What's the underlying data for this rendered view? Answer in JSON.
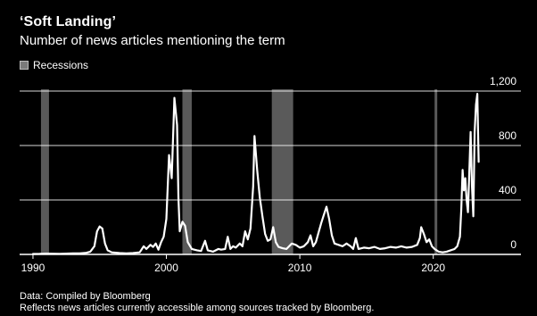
{
  "header": {
    "title": "‘Soft Landing’",
    "subtitle": "Number of news articles mentioning the term"
  },
  "legend": {
    "label": "Recessions",
    "swatch_color": "#6e6e6e"
  },
  "footer": {
    "source_line": "Data: Compiled by Bloomberg",
    "note_line": "Reflects news articles currently accessible among sources tracked by Bloomberg."
  },
  "colors": {
    "background": "#000000",
    "line": "#ffffff",
    "recession": "#5a5a5a",
    "grid": "#ffffff"
  },
  "chart_data": {
    "type": "line",
    "title": "‘Soft Landing’",
    "subtitle": "Number of news articles mentioning the term",
    "x_range": [
      1989.0,
      2024.7
    ],
    "ylim": [
      0,
      1200
    ],
    "y_ticks": [
      0,
      400,
      800,
      1200
    ],
    "y_tick_labels": [
      "0",
      "400",
      "800",
      "1,200"
    ],
    "x_ticks": [
      1990,
      2000,
      2010,
      2020
    ],
    "x_tick_labels": [
      "1990",
      "2000",
      "2010",
      "2020"
    ],
    "y_axis_side": "right",
    "grid": true,
    "legend_position": "top-left",
    "recessions": [
      [
        1990.6,
        1991.2
      ],
      [
        2001.2,
        2001.9
      ],
      [
        2007.9,
        2009.5
      ],
      [
        2020.1,
        2020.3
      ]
    ],
    "series": [
      {
        "values": [
          [
            1990.0,
            3
          ],
          [
            1990.5,
            4
          ],
          [
            1991.0,
            6
          ],
          [
            1991.5,
            5
          ],
          [
            1992.0,
            4
          ],
          [
            1992.5,
            6
          ],
          [
            1993.0,
            7
          ],
          [
            1993.5,
            8
          ],
          [
            1994.0,
            12
          ],
          [
            1994.3,
            20
          ],
          [
            1994.6,
            60
          ],
          [
            1994.8,
            170
          ],
          [
            1995.0,
            205
          ],
          [
            1995.2,
            190
          ],
          [
            1995.4,
            80
          ],
          [
            1995.6,
            30
          ],
          [
            1995.9,
            15
          ],
          [
            1996.5,
            10
          ],
          [
            1997.0,
            8
          ],
          [
            1997.5,
            10
          ],
          [
            1998.0,
            15
          ],
          [
            1998.3,
            60
          ],
          [
            1998.5,
            40
          ],
          [
            1998.8,
            70
          ],
          [
            1999.0,
            55
          ],
          [
            1999.2,
            80
          ],
          [
            1999.4,
            35
          ],
          [
            1999.6,
            90
          ],
          [
            1999.8,
            130
          ],
          [
            2000.0,
            260
          ],
          [
            2000.2,
            730
          ],
          [
            2000.4,
            560
          ],
          [
            2000.6,
            1150
          ],
          [
            2000.8,
            950
          ],
          [
            2000.9,
            420
          ],
          [
            2001.0,
            170
          ],
          [
            2001.2,
            240
          ],
          [
            2001.4,
            210
          ],
          [
            2001.6,
            90
          ],
          [
            2001.9,
            40
          ],
          [
            2002.3,
            30
          ],
          [
            2002.6,
            25
          ],
          [
            2002.9,
            100
          ],
          [
            2003.1,
            30
          ],
          [
            2003.5,
            20
          ],
          [
            2003.9,
            40
          ],
          [
            2004.1,
            35
          ],
          [
            2004.4,
            40
          ],
          [
            2004.6,
            130
          ],
          [
            2004.8,
            40
          ],
          [
            2005.0,
            60
          ],
          [
            2005.2,
            50
          ],
          [
            2005.5,
            80
          ],
          [
            2005.7,
            60
          ],
          [
            2005.9,
            170
          ],
          [
            2006.1,
            110
          ],
          [
            2006.3,
            190
          ],
          [
            2006.5,
            500
          ],
          [
            2006.6,
            870
          ],
          [
            2006.8,
            620
          ],
          [
            2007.0,
            420
          ],
          [
            2007.2,
            280
          ],
          [
            2007.4,
            150
          ],
          [
            2007.6,
            100
          ],
          [
            2007.8,
            110
          ],
          [
            2008.0,
            200
          ],
          [
            2008.2,
            90
          ],
          [
            2008.4,
            55
          ],
          [
            2008.7,
            45
          ],
          [
            2009.0,
            40
          ],
          [
            2009.4,
            80
          ],
          [
            2009.7,
            70
          ],
          [
            2010.0,
            50
          ],
          [
            2010.3,
            60
          ],
          [
            2010.6,
            90
          ],
          [
            2010.8,
            140
          ],
          [
            2011.0,
            60
          ],
          [
            2011.2,
            90
          ],
          [
            2011.4,
            160
          ],
          [
            2011.6,
            230
          ],
          [
            2011.8,
            290
          ],
          [
            2012.0,
            350
          ],
          [
            2012.2,
            260
          ],
          [
            2012.4,
            140
          ],
          [
            2012.6,
            80
          ],
          [
            2012.9,
            70
          ],
          [
            2013.2,
            60
          ],
          [
            2013.5,
            80
          ],
          [
            2013.8,
            60
          ],
          [
            2014.0,
            40
          ],
          [
            2014.2,
            120
          ],
          [
            2014.4,
            40
          ],
          [
            2014.8,
            50
          ],
          [
            2015.2,
            45
          ],
          [
            2015.6,
            55
          ],
          [
            2016.0,
            40
          ],
          [
            2016.4,
            45
          ],
          [
            2016.8,
            55
          ],
          [
            2017.2,
            50
          ],
          [
            2017.6,
            60
          ],
          [
            2018.0,
            50
          ],
          [
            2018.4,
            55
          ],
          [
            2018.8,
            70
          ],
          [
            2019.0,
            120
          ],
          [
            2019.1,
            200
          ],
          [
            2019.3,
            150
          ],
          [
            2019.5,
            90
          ],
          [
            2019.7,
            110
          ],
          [
            2019.9,
            60
          ],
          [
            2020.1,
            40
          ],
          [
            2020.4,
            20
          ],
          [
            2020.7,
            15
          ],
          [
            2021.0,
            20
          ],
          [
            2021.3,
            30
          ],
          [
            2021.6,
            40
          ],
          [
            2021.8,
            60
          ],
          [
            2022.0,
            130
          ],
          [
            2022.1,
            330
          ],
          [
            2022.2,
            620
          ],
          [
            2022.3,
            470
          ],
          [
            2022.4,
            560
          ],
          [
            2022.5,
            400
          ],
          [
            2022.6,
            310
          ],
          [
            2022.8,
            900
          ],
          [
            2022.9,
            500
          ],
          [
            2023.0,
            280
          ],
          [
            2023.1,
            900
          ],
          [
            2023.2,
            1100
          ],
          [
            2023.3,
            1180
          ],
          [
            2023.4,
            680
          ]
        ]
      }
    ]
  }
}
